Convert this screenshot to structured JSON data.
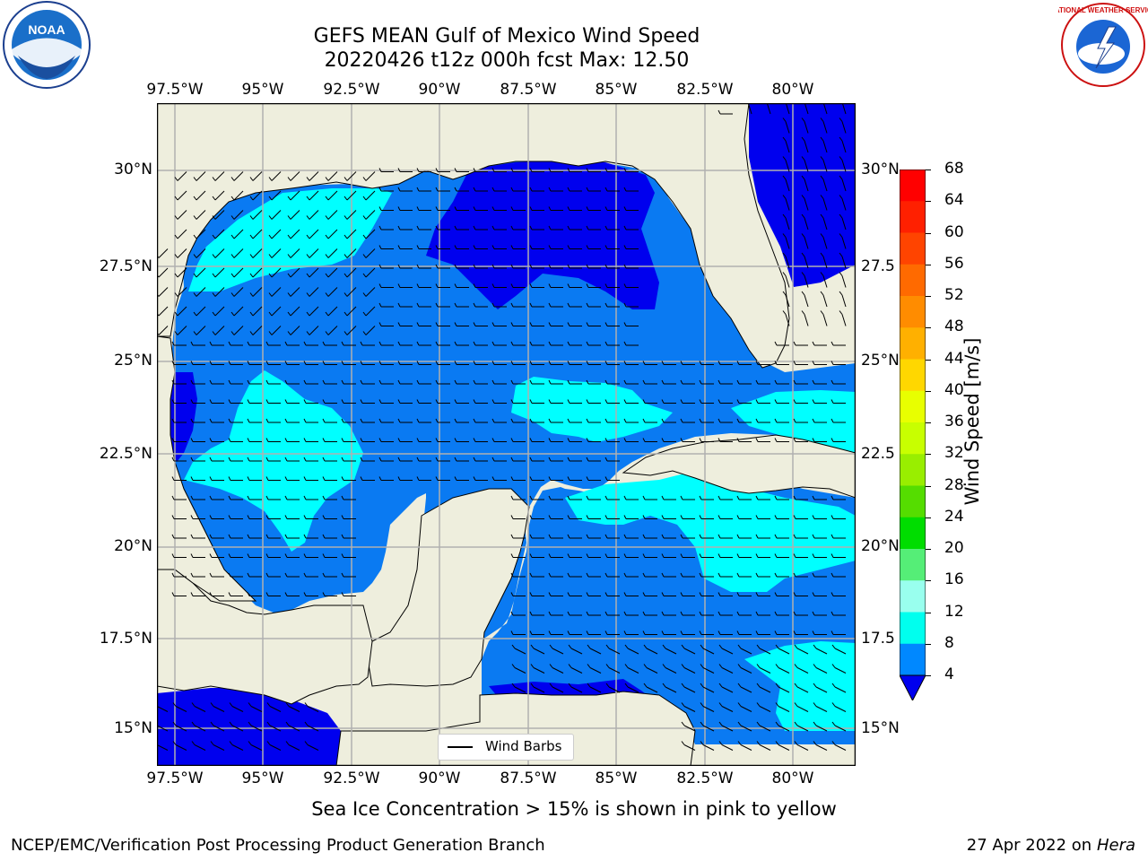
{
  "title": {
    "line1": "GEFS MEAN Gulf of Mexico Wind Speed",
    "line2": "20220426 t12z 000h fcst   Max: 12.50"
  },
  "logos": {
    "left": {
      "name": "NOAA",
      "text": "NOAA"
    },
    "right": {
      "name": "National Weather Service",
      "text": "NATIONAL WEATHER SERVICE"
    }
  },
  "map": {
    "lon_labels": [
      "97.5°W",
      "95°W",
      "92.5°W",
      "90°W",
      "87.5°W",
      "85°W",
      "82.5°W",
      "80°W"
    ],
    "lat_labels_left": [
      "30°N",
      "27.5°N",
      "25°N",
      "22.5°N",
      "20°N",
      "17.5°N",
      "15°N"
    ],
    "lat_labels_right": [
      "30°N",
      "27.5",
      "25°N",
      "22.5",
      "20°N",
      "17.5",
      "15°N"
    ],
    "legend": "Wind Barbs",
    "land_color": "#eeeedd",
    "grid_color": "#b0b0b0"
  },
  "colorbar": {
    "label": "Wind Speed [m/s]",
    "ticks": [
      "68",
      "64",
      "60",
      "56",
      "52",
      "48",
      "44",
      "40",
      "36",
      "32",
      "28",
      "24",
      "20",
      "16",
      "12",
      "8",
      "4"
    ],
    "colors_top_to_bottom": [
      "#ff0000",
      "#ff2000",
      "#ff4400",
      "#ff6a00",
      "#ff8c00",
      "#ffb000",
      "#ffd700",
      "#ffff00",
      "#e8ff00",
      "#c8ff00",
      "#99ee00",
      "#55dd00",
      "#00dd00",
      "#55ee77",
      "#99ffee",
      "#55ffee",
      "#00ffee",
      "#0088ff"
    ],
    "extend_color": "#0000ee"
  },
  "wind_colors": {
    "deep_blue": "#0000ee",
    "blue": "#0a7af2",
    "cyan": "#00ffff",
    "light_cyan": "#55ffff"
  },
  "footer": {
    "sea_ice_note": "Sea Ice Concentration > 15% is shown in pink to yellow",
    "branch": "NCEP/EMC/Verification Post Processing Product Generation Branch",
    "date": "27 Apr 2022 on",
    "host": "Hera"
  }
}
